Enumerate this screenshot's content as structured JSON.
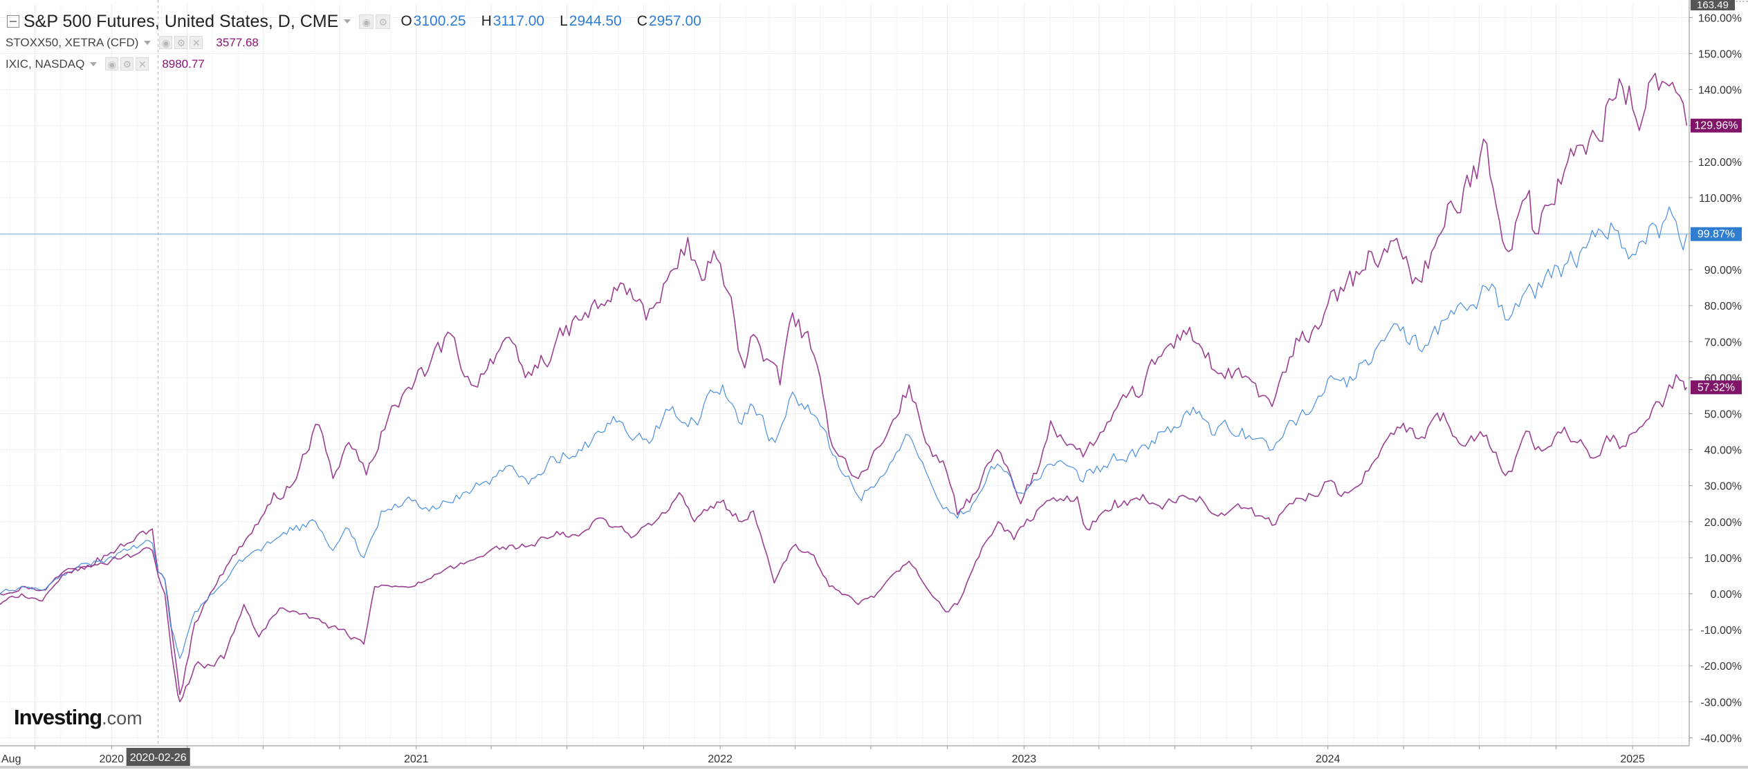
{
  "header": {
    "main_title": "S&P 500 Futures, United States, D, CME",
    "ohlc": [
      {
        "key": "O",
        "value": "3100.25"
      },
      {
        "key": "H",
        "value": "3117.00"
      },
      {
        "key": "L",
        "value": "2944.50"
      },
      {
        "key": "C",
        "value": "2957.00"
      }
    ],
    "compare": [
      {
        "label": "STOXX50, XETRA (CFD)",
        "value": "3577.68"
      },
      {
        "label": "IXIC, NASDAQ",
        "value": "8980.77"
      }
    ]
  },
  "branding": {
    "name": "Investing",
    "domain": ".com"
  },
  "colors": {
    "background": "#ffffff",
    "grid": "#efefef",
    "price_line": "#9ec0e4",
    "blue": "#4a8fe0",
    "purple": "#9b3f92",
    "dark_badge": "#7f1468",
    "blue_badge": "#2e7dd1",
    "axis_text": "#333333",
    "crosshair": "#bbbbbb",
    "date_badge": "#555555"
  },
  "chart_data": {
    "type": "line",
    "title": "S&P 500 Futures, United States, D, CME",
    "x_unit": "date",
    "xlim": [
      "2019-08-20",
      "2025-03-10"
    ],
    "ylim": [
      -40,
      163.49
    ],
    "y_unit": "%",
    "grid": true,
    "y_ticks": [
      "160.00%",
      "150.00%",
      "140.00%",
      "130.00%",
      "120.00%",
      "110.00%",
      "100.00%",
      "90.00%",
      "80.00%",
      "70.00%",
      "60.00%",
      "50.00%",
      "40.00%",
      "30.00%",
      "20.00%",
      "10.00%",
      "0.00%",
      "-10.00%",
      "-20.00%",
      "-30.00%",
      "-40.00%"
    ],
    "y_top_label": "163.49",
    "x_ticks": [
      {
        "date": "2019-08-20",
        "label": "Aug"
      },
      {
        "date": "2020-01-01",
        "label": "2020"
      },
      {
        "date": "2021-01-01",
        "label": "2021"
      },
      {
        "date": "2022-01-01",
        "label": "2022"
      },
      {
        "date": "2023-01-01",
        "label": "2023"
      },
      {
        "date": "2024-01-01",
        "label": "2024"
      },
      {
        "date": "2025-01-01",
        "label": "2025"
      }
    ],
    "crosshair": {
      "date": "2020-02-26",
      "label": "2020-02-26"
    },
    "price_line_value": 99.87,
    "series": [
      {
        "name": "IXIC, NASDAQ",
        "color": "#9b3f92",
        "width": 1.6,
        "end_label": "129.96%",
        "badge_color": "#7f1468",
        "points": [
          [
            "2019-08-20",
            0
          ],
          [
            "2019-09-15",
            2
          ],
          [
            "2019-10-10",
            1
          ],
          [
            "2019-11-10",
            7
          ],
          [
            "2019-12-15",
            10
          ],
          [
            "2020-01-20",
            14
          ],
          [
            "2020-02-19",
            18
          ],
          [
            "2020-02-26",
            6
          ],
          [
            "2020-03-05",
            4
          ],
          [
            "2020-03-16",
            -15
          ],
          [
            "2020-03-23",
            -28
          ],
          [
            "2020-04-10",
            -8
          ],
          [
            "2020-05-10",
            5
          ],
          [
            "2020-06-10",
            15
          ],
          [
            "2020-07-10",
            25
          ],
          [
            "2020-08-10",
            32
          ],
          [
            "2020-09-02",
            47
          ],
          [
            "2020-09-23",
            32
          ],
          [
            "2020-10-12",
            42
          ],
          [
            "2020-11-02",
            33
          ],
          [
            "2020-11-20",
            45
          ],
          [
            "2020-12-15",
            55
          ],
          [
            "2021-01-15",
            62
          ],
          [
            "2021-02-12",
            72
          ],
          [
            "2021-03-08",
            58
          ],
          [
            "2021-04-15",
            70
          ],
          [
            "2021-05-12",
            60
          ],
          [
            "2021-06-15",
            68
          ],
          [
            "2021-07-15",
            76
          ],
          [
            "2021-08-15",
            80
          ],
          [
            "2021-09-07",
            86
          ],
          [
            "2021-10-04",
            76
          ],
          [
            "2021-10-25",
            86
          ],
          [
            "2021-11-19",
            94
          ],
          [
            "2021-12-10",
            87
          ],
          [
            "2021-12-28",
            93
          ],
          [
            "2022-01-10",
            84
          ],
          [
            "2022-01-27",
            65
          ],
          [
            "2022-02-10",
            72
          ],
          [
            "2022-03-14",
            58
          ],
          [
            "2022-03-29",
            78
          ],
          [
            "2022-04-20",
            68
          ],
          [
            "2022-05-12",
            44
          ],
          [
            "2022-06-16",
            32
          ],
          [
            "2022-07-20",
            44
          ],
          [
            "2022-08-16",
            58
          ],
          [
            "2022-09-05",
            42
          ],
          [
            "2022-09-30",
            34
          ],
          [
            "2022-10-13",
            22
          ],
          [
            "2022-11-04",
            28
          ],
          [
            "2022-11-30",
            40
          ],
          [
            "2022-12-28",
            25
          ],
          [
            "2023-01-20",
            36
          ],
          [
            "2023-02-02",
            48
          ],
          [
            "2023-03-13",
            38
          ],
          [
            "2023-04-15",
            48
          ],
          [
            "2023-05-15",
            55
          ],
          [
            "2023-06-15",
            66
          ],
          [
            "2023-07-19",
            74
          ],
          [
            "2023-08-18",
            62
          ],
          [
            "2023-09-20",
            60
          ],
          [
            "2023-10-26",
            52
          ],
          [
            "2023-11-20",
            66
          ],
          [
            "2023-12-28",
            78
          ],
          [
            "2024-01-20",
            84
          ],
          [
            "2024-02-15",
            90
          ],
          [
            "2024-03-20",
            98
          ],
          [
            "2024-04-19",
            87
          ],
          [
            "2024-05-20",
            102
          ],
          [
            "2024-06-20",
            113
          ],
          [
            "2024-07-10",
            125
          ],
          [
            "2024-08-05",
            95
          ],
          [
            "2024-08-30",
            112
          ],
          [
            "2024-09-06",
            100
          ],
          [
            "2024-10-15",
            120
          ],
          [
            "2024-11-06",
            122
          ],
          [
            "2024-12-16",
            143
          ],
          [
            "2025-01-13",
            132
          ],
          [
            "2025-01-24",
            143
          ],
          [
            "2025-02-18",
            142
          ],
          [
            "2025-03-07",
            130
          ]
        ]
      },
      {
        "name": "S&P 500 Futures, United States, D, CME",
        "color": "#4a8fe0",
        "width": 1.2,
        "end_label": "99.87%",
        "badge_color": "#2e7dd1",
        "points": [
          [
            "2019-08-20",
            0
          ],
          [
            "2019-09-15",
            2
          ],
          [
            "2019-10-10",
            1
          ],
          [
            "2019-11-10",
            6
          ],
          [
            "2019-12-15",
            9
          ],
          [
            "2020-01-20",
            12
          ],
          [
            "2020-02-19",
            14
          ],
          [
            "2020-02-26",
            6
          ],
          [
            "2020-03-05",
            4
          ],
          [
            "2020-03-12",
            -9
          ],
          [
            "2020-03-23",
            -18
          ],
          [
            "2020-04-10",
            -5
          ],
          [
            "2020-05-10",
            2
          ],
          [
            "2020-06-10",
            10
          ],
          [
            "2020-07-10",
            14
          ],
          [
            "2020-08-10",
            19
          ],
          [
            "2020-09-02",
            20
          ],
          [
            "2020-09-23",
            12
          ],
          [
            "2020-10-12",
            18
          ],
          [
            "2020-10-30",
            10
          ],
          [
            "2020-11-20",
            23
          ],
          [
            "2020-12-31",
            26
          ],
          [
            "2021-01-29",
            24
          ],
          [
            "2021-02-26",
            28
          ],
          [
            "2021-04-15",
            34
          ],
          [
            "2021-05-12",
            32
          ],
          [
            "2021-06-15",
            38
          ],
          [
            "2021-07-15",
            40
          ],
          [
            "2021-08-15",
            45
          ],
          [
            "2021-09-02",
            48
          ],
          [
            "2021-10-04",
            43
          ],
          [
            "2021-11-05",
            52
          ],
          [
            "2021-12-01",
            48
          ],
          [
            "2021-12-28",
            56
          ],
          [
            "2022-01-04",
            58
          ],
          [
            "2022-01-27",
            47
          ],
          [
            "2022-02-10",
            52
          ],
          [
            "2022-03-08",
            42
          ],
          [
            "2022-03-29",
            56
          ],
          [
            "2022-04-20",
            50
          ],
          [
            "2022-05-20",
            38
          ],
          [
            "2022-06-16",
            27
          ],
          [
            "2022-07-20",
            34
          ],
          [
            "2022-08-16",
            44
          ],
          [
            "2022-09-05",
            34
          ],
          [
            "2022-09-30",
            24
          ],
          [
            "2022-10-13",
            21
          ],
          [
            "2022-11-04",
            26
          ],
          [
            "2022-11-30",
            36
          ],
          [
            "2022-12-28",
            28
          ],
          [
            "2023-02-02",
            36
          ],
          [
            "2023-03-13",
            31
          ],
          [
            "2023-04-15",
            37
          ],
          [
            "2023-05-15",
            38
          ],
          [
            "2023-06-15",
            45
          ],
          [
            "2023-07-27",
            50
          ],
          [
            "2023-08-18",
            44
          ],
          [
            "2023-09-20",
            46
          ],
          [
            "2023-10-27",
            40
          ],
          [
            "2023-11-20",
            48
          ],
          [
            "2023-12-28",
            56
          ],
          [
            "2024-01-20",
            60
          ],
          [
            "2024-02-15",
            65
          ],
          [
            "2024-03-28",
            73
          ],
          [
            "2024-04-19",
            68
          ],
          [
            "2024-05-20",
            76
          ],
          [
            "2024-06-20",
            80
          ],
          [
            "2024-07-16",
            86
          ],
          [
            "2024-08-05",
            76
          ],
          [
            "2024-08-30",
            86
          ],
          [
            "2024-09-06",
            82
          ],
          [
            "2024-10-15",
            92
          ],
          [
            "2024-11-06",
            96
          ],
          [
            "2024-12-06",
            103
          ],
          [
            "2024-12-19",
            96
          ],
          [
            "2025-01-13",
            98
          ],
          [
            "2025-02-18",
            105
          ],
          [
            "2025-03-07",
            99.87
          ]
        ]
      },
      {
        "name": "STOXX50, XETRA (CFD)",
        "color": "#9b3f92",
        "width": 1.6,
        "end_label": "57.32%",
        "badge_color": "#7f1468",
        "points": [
          [
            "2019-08-20",
            -3
          ],
          [
            "2019-09-15",
            0
          ],
          [
            "2019-10-10",
            -2
          ],
          [
            "2019-11-10",
            6
          ],
          [
            "2019-12-15",
            8
          ],
          [
            "2020-01-20",
            11
          ],
          [
            "2020-02-19",
            12
          ],
          [
            "2020-02-26",
            5
          ],
          [
            "2020-03-05",
            0
          ],
          [
            "2020-03-18",
            -24
          ],
          [
            "2020-03-23",
            -30
          ],
          [
            "2020-04-10",
            -20
          ],
          [
            "2020-05-15",
            -18
          ],
          [
            "2020-06-08",
            -3
          ],
          [
            "2020-06-26",
            -12
          ],
          [
            "2020-07-21",
            -4
          ],
          [
            "2020-08-10",
            -5
          ],
          [
            "2020-09-10",
            -8
          ],
          [
            "2020-10-30",
            -14
          ],
          [
            "2020-11-12",
            2
          ],
          [
            "2020-12-15",
            2
          ],
          [
            "2021-01-15",
            4
          ],
          [
            "2021-02-15",
            7
          ],
          [
            "2021-03-15",
            10
          ],
          [
            "2021-04-15",
            13
          ],
          [
            "2021-05-12",
            13
          ],
          [
            "2021-06-15",
            16
          ],
          [
            "2021-07-15",
            16
          ],
          [
            "2021-08-13",
            21
          ],
          [
            "2021-09-20",
            16
          ],
          [
            "2021-10-15",
            20
          ],
          [
            "2021-11-17",
            27
          ],
          [
            "2021-12-01",
            20
          ],
          [
            "2022-01-05",
            26
          ],
          [
            "2022-01-27",
            20
          ],
          [
            "2022-02-10",
            23
          ],
          [
            "2022-03-07",
            3
          ],
          [
            "2022-03-29",
            13
          ],
          [
            "2022-04-20",
            11
          ],
          [
            "2022-05-12",
            2
          ],
          [
            "2022-06-16",
            -3
          ],
          [
            "2022-07-05",
            -1
          ],
          [
            "2022-08-16",
            9
          ],
          [
            "2022-09-05",
            2
          ],
          [
            "2022-09-29",
            -5
          ],
          [
            "2022-10-13",
            -3
          ],
          [
            "2022-11-04",
            9
          ],
          [
            "2022-12-01",
            20
          ],
          [
            "2022-12-20",
            15
          ],
          [
            "2023-01-20",
            24
          ],
          [
            "2023-03-06",
            27
          ],
          [
            "2023-03-17",
            18
          ],
          [
            "2023-04-20",
            26
          ],
          [
            "2023-05-20",
            26
          ],
          [
            "2023-06-20",
            25
          ],
          [
            "2023-07-31",
            27
          ],
          [
            "2023-08-18",
            22
          ],
          [
            "2023-09-15",
            25
          ],
          [
            "2023-10-26",
            19
          ],
          [
            "2023-11-20",
            25
          ],
          [
            "2023-12-28",
            31
          ],
          [
            "2024-01-17",
            27
          ],
          [
            "2024-02-15",
            34
          ],
          [
            "2024-03-28",
            46
          ],
          [
            "2024-04-19",
            43
          ],
          [
            "2024-05-15",
            48
          ],
          [
            "2024-06-14",
            41
          ],
          [
            "2024-07-02",
            45
          ],
          [
            "2024-08-05",
            34
          ],
          [
            "2024-08-30",
            45
          ],
          [
            "2024-09-06",
            40
          ],
          [
            "2024-10-15",
            44
          ],
          [
            "2024-11-19",
            38
          ],
          [
            "2024-12-09",
            44
          ],
          [
            "2024-12-20",
            41
          ],
          [
            "2025-01-17",
            48
          ],
          [
            "2025-02-18",
            57
          ],
          [
            "2025-03-03",
            59
          ],
          [
            "2025-03-07",
            57.32
          ]
        ]
      }
    ]
  }
}
